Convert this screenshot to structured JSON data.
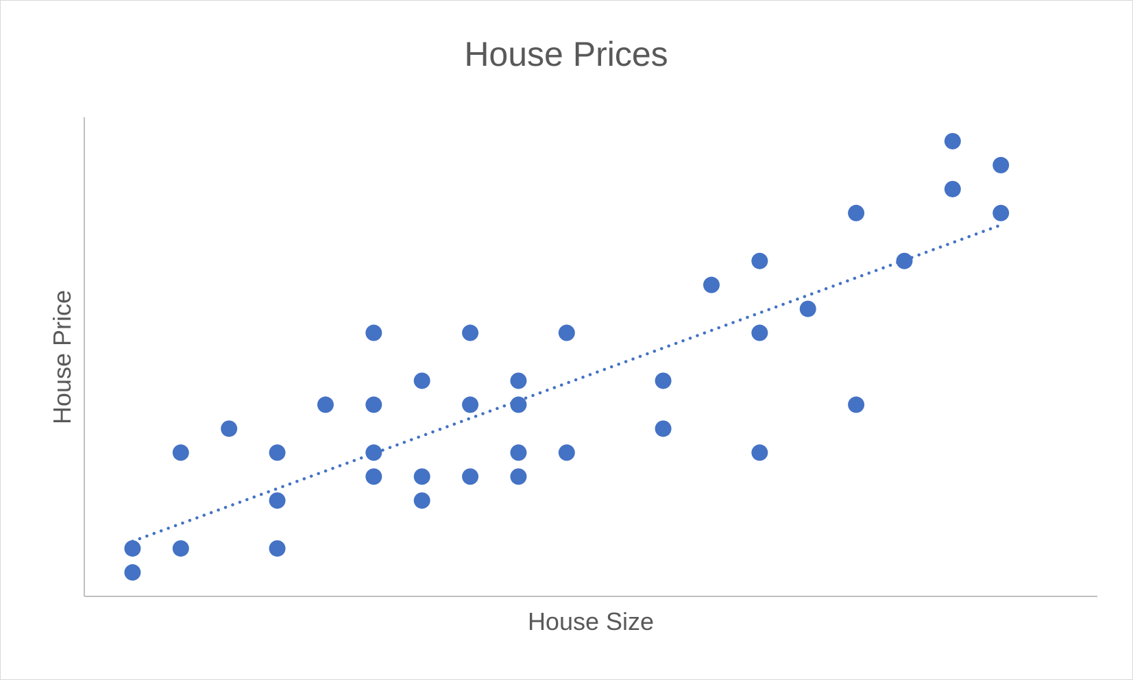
{
  "chart_data": {
    "type": "scatter",
    "title": "House Prices",
    "xlabel": "House Size",
    "ylabel": "House Price",
    "xlim": [
      0,
      21
    ],
    "ylim": [
      0,
      20
    ],
    "grid": false,
    "legend": "none",
    "color": "#4472c4",
    "trendline": {
      "style": "dotted",
      "type": "linear",
      "start": [
        1,
        2.3
      ],
      "end": [
        19,
        15.5
      ]
    },
    "points": [
      {
        "x": 1,
        "y": 1
      },
      {
        "x": 1,
        "y": 2
      },
      {
        "x": 2,
        "y": 2
      },
      {
        "x": 2,
        "y": 6
      },
      {
        "x": 3,
        "y": 7
      },
      {
        "x": 4,
        "y": 2
      },
      {
        "x": 4,
        "y": 4
      },
      {
        "x": 4,
        "y": 6
      },
      {
        "x": 5,
        "y": 8
      },
      {
        "x": 6,
        "y": 5
      },
      {
        "x": 6,
        "y": 6
      },
      {
        "x": 6,
        "y": 8
      },
      {
        "x": 6,
        "y": 11
      },
      {
        "x": 7,
        "y": 4
      },
      {
        "x": 7,
        "y": 5
      },
      {
        "x": 7,
        "y": 9
      },
      {
        "x": 8,
        "y": 5
      },
      {
        "x": 8,
        "y": 8
      },
      {
        "x": 8,
        "y": 11
      },
      {
        "x": 9,
        "y": 5
      },
      {
        "x": 9,
        "y": 6
      },
      {
        "x": 9,
        "y": 8
      },
      {
        "x": 9,
        "y": 9
      },
      {
        "x": 10,
        "y": 6
      },
      {
        "x": 10,
        "y": 11
      },
      {
        "x": 12,
        "y": 7
      },
      {
        "x": 12,
        "y": 9
      },
      {
        "x": 13,
        "y": 13
      },
      {
        "x": 14,
        "y": 6
      },
      {
        "x": 14,
        "y": 11
      },
      {
        "x": 14,
        "y": 14
      },
      {
        "x": 15,
        "y": 12
      },
      {
        "x": 16,
        "y": 8
      },
      {
        "x": 16,
        "y": 16
      },
      {
        "x": 17,
        "y": 14
      },
      {
        "x": 18,
        "y": 17
      },
      {
        "x": 18,
        "y": 19
      },
      {
        "x": 19,
        "y": 16
      },
      {
        "x": 19,
        "y": 18
      }
    ]
  }
}
